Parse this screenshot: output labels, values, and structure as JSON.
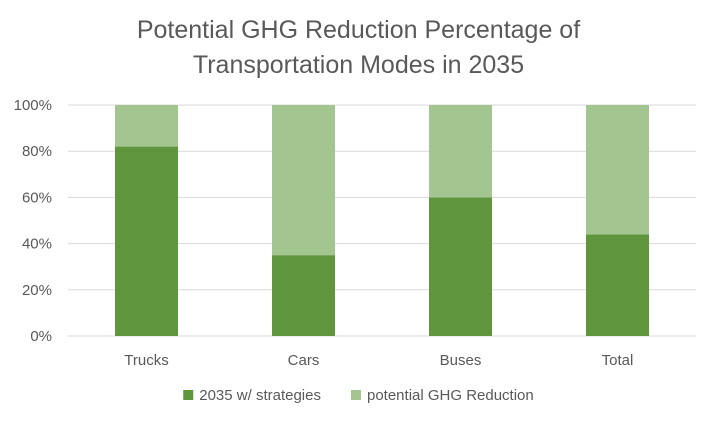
{
  "chart_data": {
    "type": "bar",
    "stacked": true,
    "title": "Potential GHG Reduction Percentage of Transportation Modes in 2035",
    "title_lines": [
      "Potential GHG Reduction Percentage of",
      "Transportation Modes in 2035"
    ],
    "categories": [
      "Trucks",
      "Cars",
      "Buses",
      "Total"
    ],
    "series": [
      {
        "name": "2035 w/ strategies",
        "values": [
          82,
          35,
          60,
          44
        ],
        "color": "#5f963d"
      },
      {
        "name": "potential GHG Reduction",
        "values": [
          18,
          65,
          40,
          56
        ],
        "color": "#a3c58f"
      }
    ],
    "yticks": [
      "0%",
      "20%",
      "40%",
      "60%",
      "80%",
      "100%"
    ],
    "ylim": [
      0,
      100
    ],
    "y_unit": "%",
    "grid": true,
    "gridline_color": "#d9d9d9",
    "legend_position": "bottom"
  }
}
